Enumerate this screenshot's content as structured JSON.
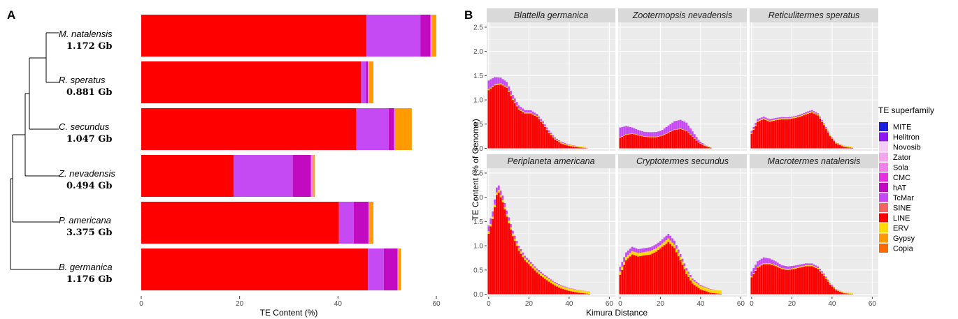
{
  "panel_a": {
    "letter": "A",
    "tree_labels": [
      {
        "species": "M. natalensis",
        "size": "1.172 Gb"
      },
      {
        "species": "R. speratus",
        "size": "0.881 Gb"
      },
      {
        "species": "C. secundus",
        "size": "1.047 Gb"
      },
      {
        "species": "Z. nevadensis",
        "size": "0.494 Gb"
      },
      {
        "species": "P. americana",
        "size": "3.375 Gb"
      },
      {
        "species": "B. germanica",
        "size": "1.176 Gb"
      }
    ]
  },
  "panel_b": {
    "letter": "B"
  },
  "legend": {
    "title": "TE superfamily",
    "items": [
      {
        "name": "MITE",
        "color": "#1f1fe0"
      },
      {
        "name": "Helitron",
        "color": "#8f17f0"
      },
      {
        "name": "Novosib",
        "color": "#f6ccf4"
      },
      {
        "name": "Zator",
        "color": "#f2a6ee"
      },
      {
        "name": "Sola",
        "color": "#ee82ea"
      },
      {
        "name": "CMC",
        "color": "#e42fe0"
      },
      {
        "name": "hAT",
        "color": "#c20ac0"
      },
      {
        "name": "TcMar",
        "color": "#c64af4"
      },
      {
        "name": "SINE",
        "color": "#f46464"
      },
      {
        "name": "LINE",
        "color": "#ff0000"
      },
      {
        "name": "ERV",
        "color": "#ffd800"
      },
      {
        "name": "Gypsy",
        "color": "#ff9b00"
      },
      {
        "name": "Copia",
        "color": "#ff6a00"
      }
    ]
  },
  "chart_data": [
    {
      "type": "bar",
      "orientation": "horizontal",
      "stacked": true,
      "xlabel": "TE Content (%)",
      "xlim": [
        0,
        61
      ],
      "xticks": [
        0,
        20,
        40,
        60
      ],
      "categories": [
        "M. natalensis",
        "R. speratus",
        "C. secundus",
        "Z. nevadensis",
        "P. americana",
        "B. germanica"
      ],
      "series": [
        {
          "name": "LINE",
          "color": "#ff0000",
          "values": [
            45.8,
            44.7,
            43.7,
            18.8,
            40.2,
            46.1
          ]
        },
        {
          "name": "TcMar",
          "color": "#c64af4",
          "values": [
            11.0,
            1.0,
            6.6,
            12.0,
            3.0,
            3.2
          ]
        },
        {
          "name": "hAT",
          "color": "#c20ac0",
          "values": [
            2.0,
            0.4,
            1.1,
            3.7,
            3.0,
            2.8
          ]
        },
        {
          "name": "Sola",
          "color": "#ee82ea",
          "values": [
            0.3,
            0.2,
            0.2,
            0.5,
            0.2,
            0.2
          ]
        },
        {
          "name": "Gypsy",
          "color": "#ff9b00",
          "values": [
            0.9,
            0.9,
            3.4,
            0.3,
            0.8,
            0.5
          ]
        }
      ]
    },
    {
      "type": "bar",
      "layout": "facet-2x3",
      "xlabel": "Kimura Distance",
      "ylabel": "TE Content (% of Genome)",
      "xlim": [
        -1,
        63
      ],
      "ylim": [
        -0.05,
        2.6
      ],
      "xticks": [
        0,
        20,
        40,
        60
      ],
      "yticks": [
        0.0,
        0.5,
        1.0,
        1.5,
        2.0,
        2.5
      ],
      "series_order": [
        "LINE",
        "ERV",
        "TcMar"
      ],
      "facets": [
        {
          "title": "Blattella germanica",
          "kp": [
            [
              0,
              1.2
            ],
            [
              3,
              1.3
            ],
            [
              6,
              1.32
            ],
            [
              9,
              1.25
            ],
            [
              12,
              1.0
            ],
            [
              15,
              0.8
            ],
            [
              18,
              0.72
            ],
            [
              21,
              0.72
            ],
            [
              24,
              0.65
            ],
            [
              27,
              0.5
            ],
            [
              30,
              0.32
            ],
            [
              33,
              0.18
            ],
            [
              36,
              0.1
            ],
            [
              40,
              0.05
            ],
            [
              45,
              0.02
            ],
            [
              50,
              0.0
            ]
          ],
          "erv": 0.02,
          "tp": [
            [
              0,
              0.18
            ],
            [
              3,
              0.15
            ],
            [
              6,
              0.12
            ],
            [
              9,
              0.1
            ],
            [
              12,
              0.08
            ],
            [
              18,
              0.05
            ],
            [
              30,
              0.03
            ],
            [
              45,
              0.0
            ]
          ]
        },
        {
          "title": "Zootermopsis nevadensis",
          "kp": [
            [
              0,
              0.22
            ],
            [
              3,
              0.28
            ],
            [
              6,
              0.3
            ],
            [
              9,
              0.27
            ],
            [
              12,
              0.24
            ],
            [
              15,
              0.23
            ],
            [
              18,
              0.23
            ],
            [
              21,
              0.26
            ],
            [
              24,
              0.32
            ],
            [
              27,
              0.38
            ],
            [
              30,
              0.4
            ],
            [
              33,
              0.36
            ],
            [
              36,
              0.24
            ],
            [
              39,
              0.12
            ],
            [
              42,
              0.05
            ],
            [
              46,
              0.0
            ]
          ],
          "erv": 0.01,
          "tp": [
            [
              0,
              0.2
            ],
            [
              3,
              0.17
            ],
            [
              6,
              0.12
            ],
            [
              9,
              0.1
            ],
            [
              12,
              0.09
            ],
            [
              20,
              0.1
            ],
            [
              27,
              0.17
            ],
            [
              30,
              0.18
            ],
            [
              33,
              0.16
            ],
            [
              36,
              0.1
            ],
            [
              40,
              0.03
            ],
            [
              44,
              0.0
            ]
          ]
        },
        {
          "title": "Reticulitermes speratus",
          "kp": [
            [
              0,
              0.3
            ],
            [
              3,
              0.55
            ],
            [
              6,
              0.6
            ],
            [
              9,
              0.55
            ],
            [
              12,
              0.58
            ],
            [
              15,
              0.6
            ],
            [
              18,
              0.6
            ],
            [
              21,
              0.62
            ],
            [
              24,
              0.65
            ],
            [
              27,
              0.7
            ],
            [
              30,
              0.74
            ],
            [
              33,
              0.68
            ],
            [
              36,
              0.48
            ],
            [
              39,
              0.25
            ],
            [
              42,
              0.1
            ],
            [
              46,
              0.03
            ],
            [
              52,
              0.0
            ]
          ],
          "erv": 0.02,
          "tp": [
            [
              0,
              0.04
            ],
            [
              10,
              0.03
            ],
            [
              20,
              0.02
            ],
            [
              30,
              0.03
            ],
            [
              40,
              0.01
            ],
            [
              50,
              0.0
            ]
          ]
        },
        {
          "title": "Periplaneta americana",
          "kp": [
            [
              0,
              1.25
            ],
            [
              2,
              1.55
            ],
            [
              4,
              2.05
            ],
            [
              5,
              2.1
            ],
            [
              7,
              1.9
            ],
            [
              9,
              1.6
            ],
            [
              12,
              1.2
            ],
            [
              15,
              0.9
            ],
            [
              18,
              0.7
            ],
            [
              21,
              0.58
            ],
            [
              24,
              0.45
            ],
            [
              27,
              0.35
            ],
            [
              30,
              0.26
            ],
            [
              33,
              0.18
            ],
            [
              36,
              0.12
            ],
            [
              40,
              0.07
            ],
            [
              45,
              0.03
            ],
            [
              52,
              0.0
            ]
          ],
          "erv": 0.05,
          "tp": [
            [
              0,
              0.12
            ],
            [
              4,
              0.1
            ],
            [
              8,
              0.08
            ],
            [
              14,
              0.05
            ],
            [
              25,
              0.03
            ],
            [
              40,
              0.01
            ],
            [
              50,
              0.0
            ]
          ]
        },
        {
          "title": "Cryptotermes secundus",
          "kp": [
            [
              0,
              0.4
            ],
            [
              3,
              0.7
            ],
            [
              6,
              0.82
            ],
            [
              9,
              0.78
            ],
            [
              12,
              0.8
            ],
            [
              15,
              0.82
            ],
            [
              18,
              0.88
            ],
            [
              21,
              0.98
            ],
            [
              24,
              1.08
            ],
            [
              27,
              0.95
            ],
            [
              30,
              0.7
            ],
            [
              33,
              0.42
            ],
            [
              36,
              0.22
            ],
            [
              40,
              0.1
            ],
            [
              45,
              0.03
            ],
            [
              52,
              0.0
            ]
          ],
          "erv": 0.07,
          "tp": [
            [
              0,
              0.1
            ],
            [
              5,
              0.09
            ],
            [
              10,
              0.08
            ],
            [
              20,
              0.08
            ],
            [
              25,
              0.1
            ],
            [
              30,
              0.06
            ],
            [
              40,
              0.02
            ],
            [
              48,
              0.0
            ]
          ]
        },
        {
          "title": "Macrotermes natalensis",
          "kp": [
            [
              0,
              0.35
            ],
            [
              3,
              0.55
            ],
            [
              6,
              0.62
            ],
            [
              9,
              0.62
            ],
            [
              12,
              0.58
            ],
            [
              15,
              0.52
            ],
            [
              18,
              0.5
            ],
            [
              21,
              0.52
            ],
            [
              24,
              0.55
            ],
            [
              27,
              0.58
            ],
            [
              30,
              0.58
            ],
            [
              33,
              0.52
            ],
            [
              36,
              0.38
            ],
            [
              39,
              0.2
            ],
            [
              42,
              0.08
            ],
            [
              46,
              0.02
            ],
            [
              52,
              0.0
            ]
          ],
          "erv": 0.02,
          "tp": [
            [
              0,
              0.1
            ],
            [
              6,
              0.12
            ],
            [
              10,
              0.09
            ],
            [
              15,
              0.06
            ],
            [
              25,
              0.04
            ],
            [
              35,
              0.03
            ],
            [
              45,
              0.0
            ]
          ]
        }
      ]
    }
  ]
}
